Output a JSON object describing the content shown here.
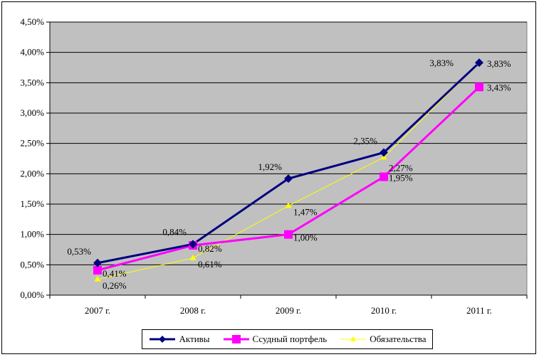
{
  "chart_data": {
    "type": "line",
    "categories": [
      "2007 г.",
      "2008 г.",
      "2009 г.",
      "2010 г.",
      "2011 г."
    ],
    "ylim": [
      0,
      4.5
    ],
    "yticks": [
      "0,00%",
      "0,50%",
      "1,00%",
      "1,50%",
      "2,00%",
      "2,50%",
      "3,00%",
      "3,50%",
      "4,00%",
      "4,50%"
    ],
    "grid": true,
    "legend_position": "bottom",
    "plot_background": "#c0c0c0",
    "series": [
      {
        "name": "Активы",
        "values": [
          0.53,
          0.84,
          1.92,
          2.35,
          3.83
        ],
        "labels": [
          "0,53%",
          "0,84%",
          "1,92%",
          "2,35%",
          "3,83%"
        ],
        "color": "#000080",
        "marker": "diamond"
      },
      {
        "name": "Ссудный портфель",
        "values": [
          0.41,
          0.82,
          1.0,
          1.95,
          3.43
        ],
        "labels": [
          "0,41%",
          "0,82%",
          "1,00%",
          "1,95%",
          "3,43%"
        ],
        "color": "#ff00ff",
        "marker": "square"
      },
      {
        "name": "Обязательства",
        "values": [
          0.26,
          0.61,
          1.47,
          2.27,
          3.83
        ],
        "labels": [
          "0,26%",
          "0,61%",
          "1,47%",
          "2,27%",
          "3,83%"
        ],
        "color": "#ffff00",
        "marker": "triangle"
      }
    ]
  }
}
